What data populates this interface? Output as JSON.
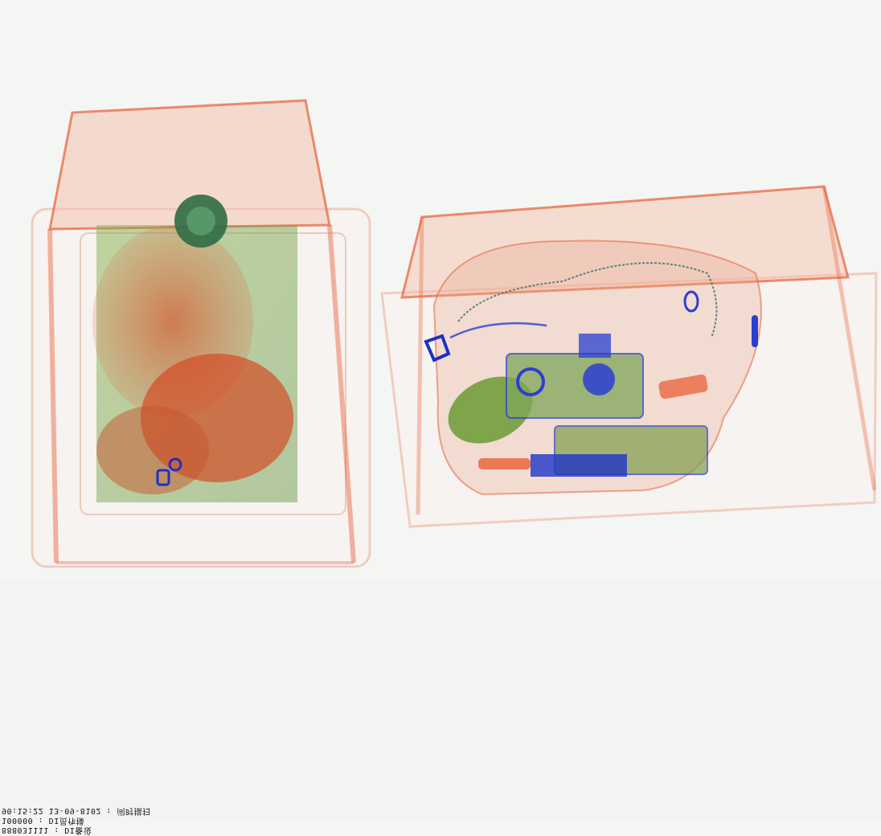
{
  "image": {
    "kind": "x-ray baggage scan",
    "background": "#f4f6f4",
    "tray_color": "#e8603a",
    "colors": {
      "organic": "#e8603a",
      "mixed": "#6f9a3a",
      "inorganic": "#2a3fd0"
    }
  },
  "overlay": {
    "lines": [
      "90:15:22 13-09-8102 : 间时描扫",
      "100000 : DI员作操",
      "888031111 : DI备设"
    ]
  }
}
